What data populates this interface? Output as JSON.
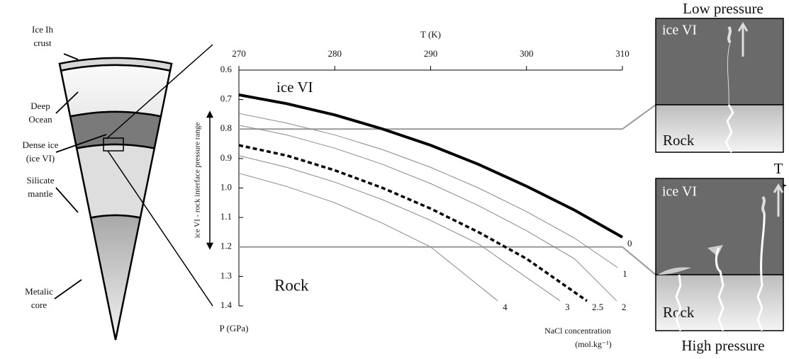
{
  "chart_data": {
    "type": "line",
    "x_label": "T (K)",
    "y_label": "P (GPa)",
    "xlim": [
      270,
      310
    ],
    "xticks": [
      270,
      280,
      290,
      300,
      310
    ],
    "ylim": [
      0.6,
      1.4
    ],
    "y_inverted": true,
    "yticks": [
      0.6,
      0.7,
      0.8,
      0.9,
      {
        "value": 1,
        "label": "1.0"
      },
      1.1,
      1.2,
      1.3,
      1.4
    ],
    "region_labels": [
      "ice VI",
      "Rock"
    ],
    "legend_title": [
      "NaCl concentration",
      "(mol.kg⁻¹)"
    ],
    "interface_range": [
      0.8,
      1.2
    ],
    "interface_label": "ice VI - rock interface pressure range",
    "series": [
      {
        "name": "0",
        "color": "#000000",
        "style": "thick",
        "x": [
          270,
          275,
          280,
          285,
          290,
          295,
          300,
          305,
          310
        ],
        "values": [
          0.684,
          0.714,
          0.752,
          0.8,
          0.855,
          0.92,
          0.994,
          1.075,
          1.167
        ]
      },
      {
        "name": "1",
        "color": "#888888",
        "style": "thin",
        "x": [
          270,
          275,
          280,
          285,
          290,
          295,
          300,
          305,
          309.5
        ],
        "values": [
          0.747,
          0.78,
          0.82,
          0.87,
          0.93,
          1.0,
          1.08,
          1.17,
          1.27
        ]
      },
      {
        "name": "2",
        "color": "#888888",
        "style": "thin",
        "x": [
          270,
          275,
          280,
          285,
          290,
          295,
          300,
          305,
          309.4
        ],
        "values": [
          0.787,
          0.82,
          0.865,
          0.92,
          0.985,
          1.06,
          1.145,
          1.24,
          1.383
        ]
      },
      {
        "name": "2.5",
        "color": "#000000",
        "style": "dashed",
        "x": [
          270,
          275,
          280,
          285,
          290,
          295,
          300,
          306.3
        ],
        "values": [
          0.855,
          0.89,
          0.94,
          1.0,
          1.07,
          1.15,
          1.24,
          1.383
        ]
      },
      {
        "name": "3",
        "color": "#888888",
        "style": "thin",
        "x": [
          270,
          275,
          280,
          285,
          290,
          295,
          303.5
        ],
        "values": [
          0.89,
          0.93,
          0.98,
          1.04,
          1.11,
          1.19,
          1.383
        ]
      },
      {
        "name": "4",
        "color": "#888888",
        "style": "thin",
        "x": [
          270,
          275,
          280,
          285,
          290,
          297
        ],
        "values": [
          0.95,
          0.995,
          1.05,
          1.12,
          1.2,
          1.383
        ]
      }
    ]
  },
  "planet_diagram": {
    "layers": [
      [
        "Ice Ih",
        "crust"
      ],
      [
        "Deep",
        "Ocean"
      ],
      [
        "Dense ice",
        "(ice VI)"
      ],
      [
        "Silicate",
        "mantle"
      ],
      [
        "Metalic",
        "core"
      ]
    ]
  },
  "panels": {
    "top_title": "Low pressure",
    "bottom_title": "High pressure",
    "axis_label": "T",
    "top": {
      "upper": "ice VI",
      "lower": "Rock"
    },
    "bottom": {
      "upper": "ice VI",
      "lower": "Rock"
    }
  }
}
